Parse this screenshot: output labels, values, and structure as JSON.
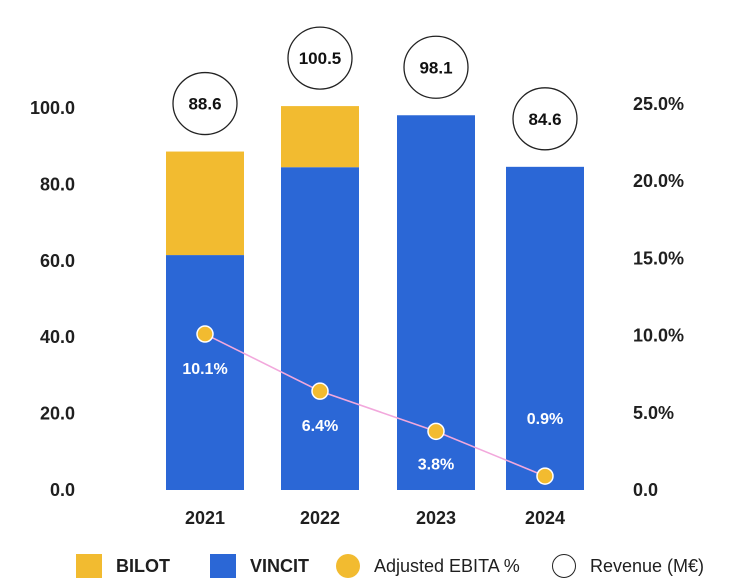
{
  "chart_data": {
    "type": "bar",
    "stacked": true,
    "categories": [
      "2021",
      "2022",
      "2023",
      "2024"
    ],
    "series": [
      {
        "name": "VINCIT",
        "color": "#2b67d6",
        "values": [
          61.5,
          84.5,
          98.1,
          84.6
        ]
      },
      {
        "name": "BILOT",
        "color": "#f2bb30",
        "values": [
          27.1,
          16.0,
          0,
          0
        ]
      }
    ],
    "totals": {
      "name": "Revenue (M€)",
      "values": [
        88.6,
        100.5,
        98.1,
        84.6
      ],
      "labels": [
        "88.6",
        "100.5",
        "98.1",
        "84.6"
      ]
    },
    "line": {
      "name": "Adjusted EBITA %",
      "color": "#f2bb30",
      "line_color": "#f2a8dc",
      "values": [
        10.1,
        6.4,
        3.8,
        0.9
      ],
      "labels": [
        "10.1%",
        "6.4%",
        "3.8%",
        "0.9%"
      ],
      "axis": "right"
    },
    "y_left": {
      "range": [
        0,
        100
      ],
      "ticks": [
        0,
        20,
        40,
        60,
        80,
        100
      ],
      "tick_labels": [
        "0.0",
        "20.0",
        "40.0",
        "60.0",
        "80.0",
        "100.0"
      ]
    },
    "y_right": {
      "range": [
        0,
        25
      ],
      "ticks": [
        0,
        5,
        10,
        15,
        20,
        25
      ],
      "tick_labels": [
        "0.0",
        "5.0%",
        "10.0%",
        "15.0%",
        "20.0%",
        "25.0%"
      ]
    },
    "title": "",
    "xlabel": "",
    "ylabel": "",
    "grid": false,
    "legend_position": "bottom"
  },
  "legend": {
    "items": [
      {
        "label": "BILOT",
        "kind": "square",
        "color": "#f2bb30"
      },
      {
        "label": "VINCIT",
        "kind": "square",
        "color": "#2b67d6"
      },
      {
        "label": "Adjusted EBITA %",
        "kind": "dot",
        "color": "#f2bb30"
      },
      {
        "label": "Revenue (M€)",
        "kind": "circle",
        "color": "#ffffff"
      }
    ]
  }
}
